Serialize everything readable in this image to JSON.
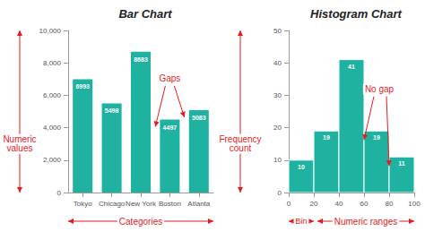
{
  "chart_data": [
    {
      "type": "bar",
      "title": "Bar Chart",
      "categories": [
        "Tokyo",
        "Chicago",
        "New York",
        "Boston",
        "Atlanta"
      ],
      "values": [
        6993,
        5498,
        8683,
        4497,
        5083
      ],
      "color": "#20b2a0",
      "y_label": "Numeric values",
      "x_label": "Categories",
      "annotations": [
        "Gaps"
      ],
      "ylim": [
        0,
        10000
      ],
      "yticks": [
        0,
        2000,
        4000,
        6000,
        8000,
        10000
      ],
      "grid": false,
      "data_labels": true
    },
    {
      "type": "histogram",
      "title": "Histogram Chart",
      "bins": [
        0,
        20,
        40,
        60,
        80,
        100
      ],
      "values": [
        10,
        19,
        41,
        19,
        11
      ],
      "color": "#20b2a0",
      "y_label": "Frequency count",
      "x_label": "Numeric ranges",
      "annotations": [
        "No gap",
        "Bin"
      ],
      "xlim": [
        0,
        100
      ],
      "xticks": [
        0,
        20,
        40,
        60,
        80,
        100
      ],
      "ylim": [
        0,
        50
      ],
      "yticks": [
        0,
        10,
        20,
        30,
        40,
        50
      ],
      "grid": false,
      "data_labels": true
    }
  ]
}
